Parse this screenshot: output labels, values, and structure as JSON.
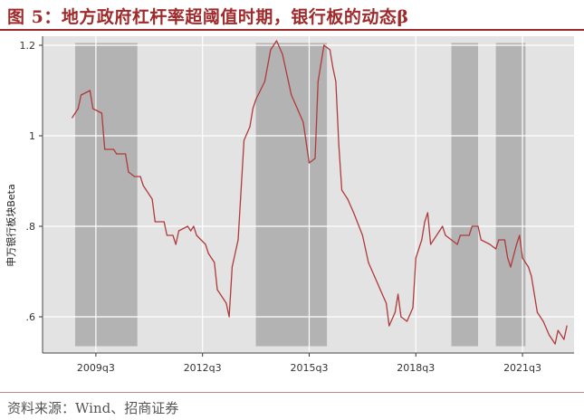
{
  "header": {
    "title": "图 5：地方政府杠杆率超阈值时期，银行板的动态β"
  },
  "footer": {
    "source": "资料来源：Wind、招商证券"
  },
  "colors": {
    "title": "#9e2a2b",
    "line": "#b03a3a",
    "shade": "#b3b3b3",
    "plot_bg": "#e3e3e3",
    "grid": "#ffffff"
  },
  "chart_data": {
    "type": "line",
    "title": "",
    "xlabel": "",
    "ylabel": "申万银行板块Beta",
    "x_ticks": [
      "2009q3",
      "2012q3",
      "2015q3",
      "2018q3",
      "2021q3"
    ],
    "y_ticks": [
      ".6",
      ".8",
      "1",
      "1.2"
    ],
    "ylim": [
      0.52,
      1.22
    ],
    "grid": true,
    "series": [
      {
        "name": "",
        "color": "#b03a3a",
        "points": [
          [
            "2008-11",
            1.04
          ],
          [
            "2008-12",
            1.05
          ],
          [
            "2009-01",
            1.06
          ],
          [
            "2009-02",
            1.09
          ],
          [
            "2009-05",
            1.1
          ],
          [
            "2009-06",
            1.06
          ],
          [
            "2009-09",
            1.05
          ],
          [
            "2009-10",
            0.97
          ],
          [
            "2010-01",
            0.97
          ],
          [
            "2010-02",
            0.96
          ],
          [
            "2010-05",
            0.96
          ],
          [
            "2010-06",
            0.92
          ],
          [
            "2010-08",
            0.91
          ],
          [
            "2010-10",
            0.91
          ],
          [
            "2010-11",
            0.89
          ],
          [
            "2011-02",
            0.86
          ],
          [
            "2011-03",
            0.81
          ],
          [
            "2011-06",
            0.81
          ],
          [
            "2011-07",
            0.78
          ],
          [
            "2011-09",
            0.78
          ],
          [
            "2011-10",
            0.76
          ],
          [
            "2011-11",
            0.79
          ],
          [
            "2012-02",
            0.8
          ],
          [
            "2012-03",
            0.79
          ],
          [
            "2012-04",
            0.8
          ],
          [
            "2012-05",
            0.78
          ],
          [
            "2012-08",
            0.76
          ],
          [
            "2012-09",
            0.74
          ],
          [
            "2012-11",
            0.72
          ],
          [
            "2012-12",
            0.66
          ],
          [
            "2013-02",
            0.64
          ],
          [
            "2013-03",
            0.63
          ],
          [
            "2013-04",
            0.6
          ],
          [
            "2013-05",
            0.71
          ],
          [
            "2013-07",
            0.77
          ],
          [
            "2013-09",
            0.99
          ],
          [
            "2013-11",
            1.02
          ],
          [
            "2013-12",
            1.06
          ],
          [
            "2014-01",
            1.08
          ],
          [
            "2014-04",
            1.12
          ],
          [
            "2014-06",
            1.19
          ],
          [
            "2014-08",
            1.21
          ],
          [
            "2014-10",
            1.18
          ],
          [
            "2015-01",
            1.09
          ],
          [
            "2015-03",
            1.06
          ],
          [
            "2015-05",
            1.03
          ],
          [
            "2015-07",
            0.94
          ],
          [
            "2015-09",
            0.95
          ],
          [
            "2015-10",
            1.12
          ],
          [
            "2015-12",
            1.2
          ],
          [
            "2016-02",
            1.19
          ],
          [
            "2016-03",
            1.15
          ],
          [
            "2016-04",
            1.12
          ],
          [
            "2016-05",
            0.98
          ],
          [
            "2016-06",
            0.88
          ],
          [
            "2016-08",
            0.86
          ],
          [
            "2016-10",
            0.83
          ],
          [
            "2017-01",
            0.78
          ],
          [
            "2017-03",
            0.72
          ],
          [
            "2017-05",
            0.69
          ],
          [
            "2017-07",
            0.66
          ],
          [
            "2017-09",
            0.63
          ],
          [
            "2017-10",
            0.58
          ],
          [
            "2017-12",
            0.61
          ],
          [
            "2018-01",
            0.65
          ],
          [
            "2018-02",
            0.6
          ],
          [
            "2018-04",
            0.59
          ],
          [
            "2018-06",
            0.62
          ],
          [
            "2018-07",
            0.73
          ],
          [
            "2018-09",
            0.77
          ],
          [
            "2018-10",
            0.81
          ],
          [
            "2018-11",
            0.83
          ],
          [
            "2018-12",
            0.76
          ],
          [
            "2019-03",
            0.79
          ],
          [
            "2019-04",
            0.8
          ],
          [
            "2019-05",
            0.78
          ],
          [
            "2019-07",
            0.77
          ],
          [
            "2019-09",
            0.76
          ],
          [
            "2019-10",
            0.78
          ],
          [
            "2020-01",
            0.78
          ],
          [
            "2020-02",
            0.8
          ],
          [
            "2020-04",
            0.8
          ],
          [
            "2020-05",
            0.77
          ],
          [
            "2020-08",
            0.76
          ],
          [
            "2020-10",
            0.75
          ],
          [
            "2020-11",
            0.77
          ],
          [
            "2021-01",
            0.77
          ],
          [
            "2021-02",
            0.73
          ],
          [
            "2021-03",
            0.71
          ],
          [
            "2021-05",
            0.76
          ],
          [
            "2021-06",
            0.78
          ],
          [
            "2021-07",
            0.73
          ],
          [
            "2021-09",
            0.71
          ],
          [
            "2021-10",
            0.69
          ],
          [
            "2021-12",
            0.61
          ],
          [
            "2022-02",
            0.59
          ],
          [
            "2022-04",
            0.56
          ],
          [
            "2022-05",
            0.55
          ],
          [
            "2022-06",
            0.54
          ],
          [
            "2022-07",
            0.57
          ],
          [
            "2022-09",
            0.55
          ],
          [
            "2022-10",
            0.58
          ]
        ]
      }
    ],
    "shaded_periods": [
      [
        "2008-12",
        "2010-09"
      ],
      [
        "2014-01",
        "2016-01"
      ],
      [
        "2019-07",
        "2020-04"
      ],
      [
        "2020-10",
        "2021-08"
      ]
    ]
  }
}
